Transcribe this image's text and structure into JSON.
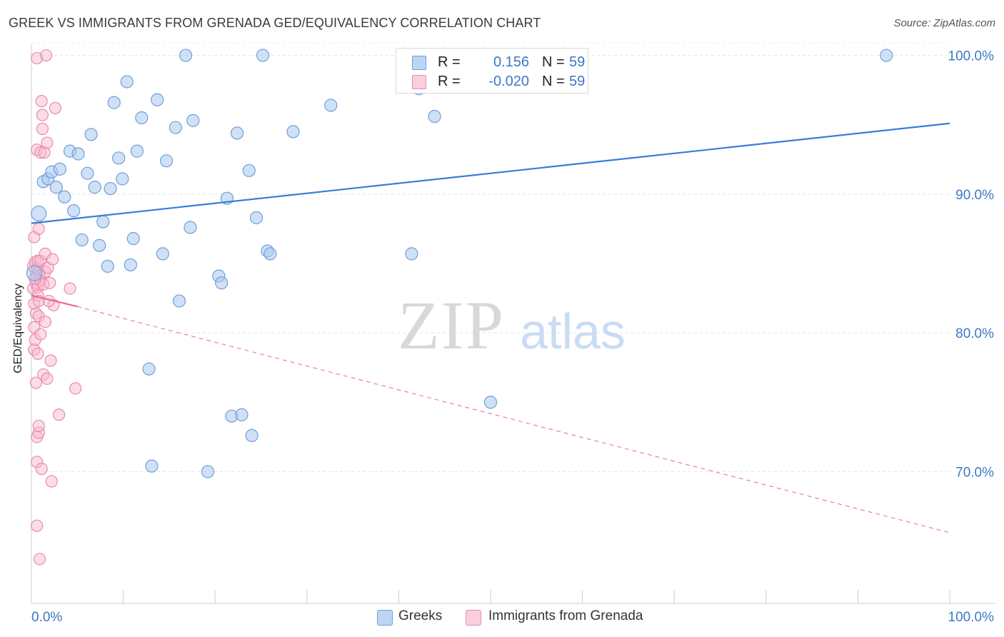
{
  "header": {
    "title": "GREEK VS IMMIGRANTS FROM GRENADA GED/EQUIVALENCY CORRELATION CHART",
    "source": "Source: ZipAtlas.com"
  },
  "watermark": {
    "zip": "ZIP",
    "atlas": "atlas"
  },
  "legend_top": {
    "rows": [
      {
        "r_label": "R =",
        "r_value": "0.156",
        "n_label": "N =",
        "n_value": "59",
        "color": "#a9c8ee",
        "stroke": "#6f9fd8"
      },
      {
        "r_label": "R =",
        "r_value": "-0.020",
        "n_label": "N =",
        "n_value": "59",
        "color": "#f7bcd0",
        "stroke": "#e98aac"
      }
    ]
  },
  "legend_bottom": {
    "items": [
      {
        "label": "Greeks",
        "color": "#a9c8ee",
        "stroke": "#6f9fd8"
      },
      {
        "label": "Immigrants from Grenada",
        "color": "#f7bcd0",
        "stroke": "#e98aac"
      }
    ]
  },
  "chart_data": {
    "type": "scatter",
    "title": "GREEK VS IMMIGRANTS FROM GRENADA GED/EQUIVALENCY CORRELATION CHART",
    "xlabel": "",
    "ylabel": "GED/Equivalency",
    "xlim": [
      0,
      100
    ],
    "ylim": [
      60.5,
      100.8
    ],
    "x_tick_labels": [
      "0.0%",
      "100.0%"
    ],
    "y_ticks": [
      70,
      80,
      90,
      100
    ],
    "y_tick_labels": [
      "70.0%",
      "80.0%",
      "90.0%",
      "100.0%"
    ],
    "grid": true,
    "legend_placement": "top-center",
    "colors": {
      "blue": "#3b7dd8",
      "pink": "#e36b96",
      "tick_label": "#3c78c8"
    },
    "series": [
      {
        "name": "Greeks",
        "color": "#a9c8ee",
        "stroke": "#6f9fd8",
        "r": 0.156,
        "n": 59,
        "trend": {
          "x": [
            0,
            100
          ],
          "y": [
            87.9,
            95.1
          ],
          "style": "solid"
        },
        "points": [
          [
            0.3,
            84.3
          ],
          [
            0.8,
            88.6
          ],
          [
            1.3,
            90.9
          ],
          [
            1.8,
            91.1
          ],
          [
            2.2,
            91.6
          ],
          [
            2.7,
            90.5
          ],
          [
            3.1,
            91.8
          ],
          [
            3.6,
            89.8
          ],
          [
            4.2,
            93.1
          ],
          [
            4.6,
            88.8
          ],
          [
            5.1,
            92.9
          ],
          [
            5.5,
            86.7
          ],
          [
            6.1,
            91.5
          ],
          [
            6.5,
            94.3
          ],
          [
            6.9,
            90.5
          ],
          [
            7.4,
            86.3
          ],
          [
            7.8,
            88.0
          ],
          [
            8.3,
            84.8
          ],
          [
            8.6,
            90.4
          ],
          [
            9.0,
            96.6
          ],
          [
            9.5,
            92.6
          ],
          [
            9.9,
            91.1
          ],
          [
            10.4,
            98.1
          ],
          [
            10.8,
            84.9
          ],
          [
            11.1,
            86.8
          ],
          [
            11.5,
            93.1
          ],
          [
            12.0,
            95.5
          ],
          [
            12.8,
            77.4
          ],
          [
            13.1,
            70.4
          ],
          [
            13.7,
            96.8
          ],
          [
            14.3,
            85.7
          ],
          [
            14.7,
            92.4
          ],
          [
            15.7,
            94.8
          ],
          [
            16.1,
            82.3
          ],
          [
            16.8,
            100.0
          ],
          [
            17.3,
            87.6
          ],
          [
            17.6,
            95.3
          ],
          [
            19.2,
            70.0
          ],
          [
            20.4,
            84.1
          ],
          [
            20.7,
            83.6
          ],
          [
            21.3,
            89.7
          ],
          [
            21.8,
            74.0
          ],
          [
            22.4,
            94.4
          ],
          [
            22.9,
            74.1
          ],
          [
            23.7,
            91.7
          ],
          [
            24.0,
            72.6
          ],
          [
            24.5,
            88.3
          ],
          [
            25.2,
            100.0
          ],
          [
            25.7,
            85.9
          ],
          [
            26.0,
            85.7
          ],
          [
            28.5,
            94.5
          ],
          [
            32.6,
            96.4
          ],
          [
            41.4,
            85.7
          ],
          [
            42.2,
            97.6
          ],
          [
            43.9,
            95.6
          ],
          [
            50.0,
            75.0
          ],
          [
            51.8,
            100.0
          ],
          [
            56.2,
            100.0
          ],
          [
            93.1,
            100.0
          ]
        ]
      },
      {
        "name": "Immigrants from Grenada",
        "color": "#f7bcd0",
        "stroke": "#e98aac",
        "r": -0.02,
        "n": 59,
        "trend_solid": {
          "x": [
            0,
            5
          ],
          "y": [
            82.7,
            81.9
          ]
        },
        "trend_dashed": {
          "x": [
            5,
            100
          ],
          "y": [
            81.9,
            65.6
          ]
        },
        "points": [
          [
            0.2,
            84.8
          ],
          [
            0.2,
            83.2
          ],
          [
            0.3,
            82.1
          ],
          [
            0.3,
            80.4
          ],
          [
            0.3,
            78.8
          ],
          [
            0.3,
            86.9
          ],
          [
            0.4,
            79.5
          ],
          [
            0.4,
            85.1
          ],
          [
            0.5,
            84.1
          ],
          [
            0.5,
            83.6
          ],
          [
            0.5,
            81.4
          ],
          [
            0.5,
            76.4
          ],
          [
            0.6,
            99.8
          ],
          [
            0.6,
            93.2
          ],
          [
            0.6,
            84.6
          ],
          [
            0.6,
            72.5
          ],
          [
            0.6,
            70.7
          ],
          [
            0.6,
            66.1
          ],
          [
            0.7,
            85.2
          ],
          [
            0.7,
            83.3
          ],
          [
            0.7,
            82.7
          ],
          [
            0.7,
            78.5
          ],
          [
            0.8,
            87.5
          ],
          [
            0.8,
            84.4
          ],
          [
            0.8,
            82.3
          ],
          [
            0.8,
            81.2
          ],
          [
            0.8,
            72.8
          ],
          [
            0.8,
            73.3
          ],
          [
            0.9,
            84.1
          ],
          [
            0.9,
            63.7
          ],
          [
            1.0,
            93.0
          ],
          [
            1.0,
            85.2
          ],
          [
            1.0,
            83.8
          ],
          [
            1.0,
            79.9
          ],
          [
            1.1,
            96.7
          ],
          [
            1.1,
            70.2
          ],
          [
            1.2,
            95.7
          ],
          [
            1.2,
            94.7
          ],
          [
            1.3,
            83.5
          ],
          [
            1.3,
            77.0
          ],
          [
            1.4,
            93.0
          ],
          [
            1.5,
            85.7
          ],
          [
            1.5,
            84.4
          ],
          [
            1.5,
            80.8
          ],
          [
            1.6,
            100.0
          ],
          [
            1.7,
            93.7
          ],
          [
            1.7,
            76.7
          ],
          [
            1.8,
            84.7
          ],
          [
            2.0,
            83.6
          ],
          [
            2.1,
            78.0
          ],
          [
            2.2,
            69.3
          ],
          [
            2.3,
            85.3
          ],
          [
            2.4,
            82.0
          ],
          [
            2.6,
            96.2
          ],
          [
            3.0,
            74.1
          ],
          [
            4.2,
            83.2
          ],
          [
            4.8,
            76.0
          ],
          [
            1.9,
            82.3
          ],
          [
            0.4,
            83.9
          ]
        ]
      }
    ]
  }
}
